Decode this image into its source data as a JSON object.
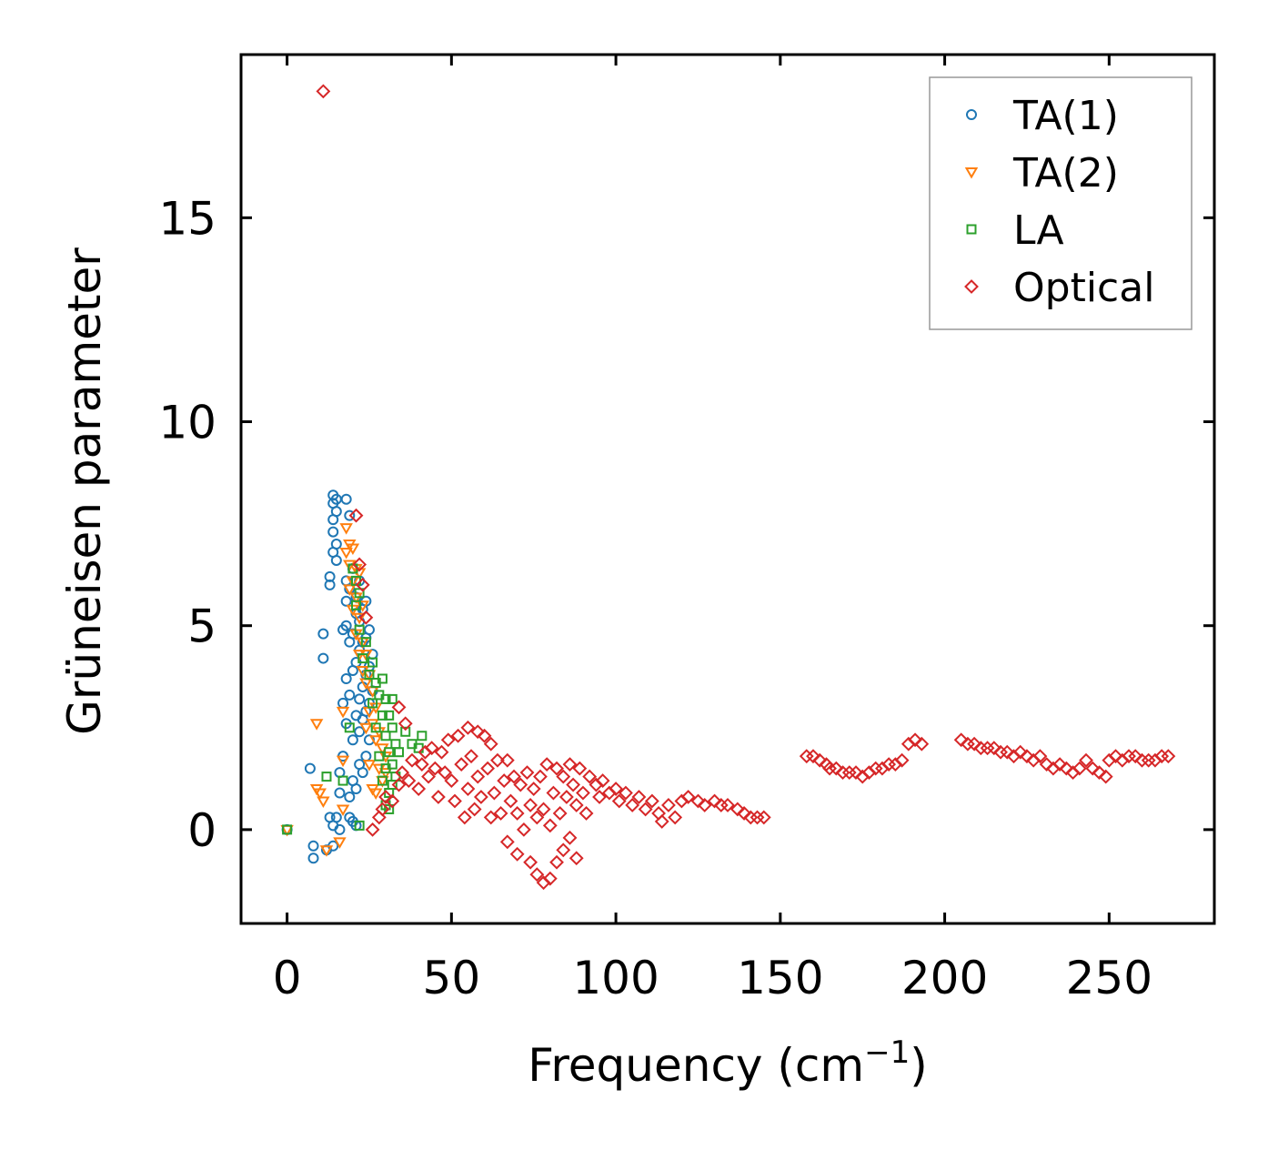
{
  "chart_data": {
    "type": "scatter",
    "title": "",
    "xlabel": "Frequency (cm",
    "xlabel_sup": "−1",
    "xlabel_close": ")",
    "ylabel": "Grüneisen parameter",
    "xlim": [
      -14,
      282
    ],
    "ylim": [
      -2.3,
      19.0
    ],
    "xticks": [
      0,
      50,
      100,
      150,
      200,
      250
    ],
    "xtick_labels": [
      "0",
      "50",
      "100",
      "150",
      "200",
      "250"
    ],
    "yticks": [
      0,
      5,
      10,
      15
    ],
    "ytick_labels": [
      "0",
      "5",
      "10",
      "15"
    ],
    "grid": false,
    "legend_position": "top-right",
    "series": [
      {
        "name": "TA(1)",
        "marker": "circle",
        "color": "#1f77b4",
        "points": [
          [
            0,
            0
          ],
          [
            7,
            1.5
          ],
          [
            8,
            -0.4
          ],
          [
            8,
            -0.7
          ],
          [
            11,
            4.2
          ],
          [
            11,
            4.8
          ],
          [
            12,
            -0.5
          ],
          [
            13,
            0.3
          ],
          [
            13,
            6.0
          ],
          [
            13,
            6.2
          ],
          [
            14,
            6.8
          ],
          [
            14,
            7.3
          ],
          [
            14,
            7.6
          ],
          [
            14,
            8.0
          ],
          [
            14,
            8.2
          ],
          [
            14,
            -0.4
          ],
          [
            14,
            0.1
          ],
          [
            15,
            6.6
          ],
          [
            15,
            7.0
          ],
          [
            15,
            7.8
          ],
          [
            15,
            8.1
          ],
          [
            15,
            0.3
          ],
          [
            16,
            0
          ],
          [
            16,
            0.9
          ],
          [
            16,
            1.4
          ],
          [
            17,
            1.8
          ],
          [
            17,
            3.1
          ],
          [
            17,
            4.9
          ],
          [
            18,
            2.6
          ],
          [
            18,
            3.7
          ],
          [
            18,
            5.0
          ],
          [
            18,
            5.6
          ],
          [
            18,
            6.1
          ],
          [
            18,
            8.1
          ],
          [
            19,
            0.3
          ],
          [
            19,
            0.8
          ],
          [
            19,
            3.3
          ],
          [
            19,
            4.6
          ],
          [
            19,
            5.9
          ],
          [
            19,
            7.7
          ],
          [
            20,
            0.2
          ],
          [
            20,
            1.2
          ],
          [
            20,
            2.2
          ],
          [
            20,
            3.9
          ],
          [
            20,
            4.8
          ],
          [
            20,
            6.4
          ],
          [
            21,
            0.1
          ],
          [
            21,
            1.0
          ],
          [
            21,
            2.8
          ],
          [
            21,
            4.1
          ],
          [
            21,
            5.3
          ],
          [
            21,
            5.7
          ],
          [
            22,
            1.6
          ],
          [
            22,
            2.4
          ],
          [
            22,
            3.2
          ],
          [
            22,
            4.4
          ],
          [
            22,
            5.1
          ],
          [
            22,
            6.1
          ],
          [
            23,
            1.4
          ],
          [
            23,
            2.7
          ],
          [
            23,
            3.5
          ],
          [
            23,
            4.6
          ],
          [
            23,
            5.4
          ],
          [
            24,
            1.8
          ],
          [
            24,
            2.9
          ],
          [
            24,
            3.8
          ],
          [
            24,
            4.7
          ],
          [
            24,
            5.6
          ],
          [
            25,
            2.2
          ],
          [
            25,
            3.1
          ],
          [
            25,
            4.0
          ],
          [
            25,
            4.9
          ],
          [
            26,
            3.4
          ],
          [
            26,
            4.3
          ]
        ]
      },
      {
        "name": "TA(2)",
        "marker": "triangle-down",
        "color": "#ff7f0e",
        "points": [
          [
            0,
            0
          ],
          [
            9,
            2.6
          ],
          [
            9,
            1.0
          ],
          [
            10,
            0.9
          ],
          [
            11,
            0.7
          ],
          [
            12,
            -0.5
          ],
          [
            16,
            -0.3
          ],
          [
            17,
            0.5
          ],
          [
            17,
            1.7
          ],
          [
            17,
            2.9
          ],
          [
            18,
            6.8
          ],
          [
            18,
            7.4
          ],
          [
            19,
            5.9
          ],
          [
            19,
            6.5
          ],
          [
            19,
            7.0
          ],
          [
            20,
            5.4
          ],
          [
            20,
            6.1
          ],
          [
            20,
            6.9
          ],
          [
            21,
            4.8
          ],
          [
            21,
            5.7
          ],
          [
            21,
            6.4
          ],
          [
            22,
            4.3
          ],
          [
            22,
            5.2
          ],
          [
            22,
            6.3
          ],
          [
            23,
            3.9
          ],
          [
            23,
            4.6
          ],
          [
            23,
            5.5
          ],
          [
            24,
            2.5
          ],
          [
            24,
            3.6
          ],
          [
            24,
            4.3
          ],
          [
            25,
            1.6
          ],
          [
            25,
            2.9
          ],
          [
            25,
            3.8
          ],
          [
            26,
            1.0
          ],
          [
            26,
            2.6
          ],
          [
            26,
            3.4
          ],
          [
            27,
            0.9
          ],
          [
            27,
            2.2
          ],
          [
            27,
            3.0
          ],
          [
            28,
            1.5
          ],
          [
            28,
            2.4
          ],
          [
            29,
            1.2
          ],
          [
            29,
            2.0
          ],
          [
            30,
            1.4
          ],
          [
            30,
            1.8
          ]
        ]
      },
      {
        "name": "LA",
        "marker": "square",
        "color": "#2ca02c",
        "points": [
          [
            0,
            0
          ],
          [
            12,
            1.3
          ],
          [
            17,
            1.2
          ],
          [
            19,
            2.5
          ],
          [
            20,
            6.4
          ],
          [
            21,
            6.1
          ],
          [
            21,
            5.5
          ],
          [
            22,
            5.8
          ],
          [
            22,
            4.9
          ],
          [
            23,
            4.2
          ],
          [
            24,
            4.6
          ],
          [
            25,
            3.8
          ],
          [
            26,
            3.1
          ],
          [
            26,
            4.1
          ],
          [
            27,
            2.5
          ],
          [
            27,
            3.6
          ],
          [
            28,
            1.8
          ],
          [
            28,
            3.3
          ],
          [
            29,
            1.2
          ],
          [
            29,
            2.8
          ],
          [
            29,
            3.7
          ],
          [
            30,
            0.6
          ],
          [
            30,
            1.5
          ],
          [
            30,
            2.3
          ],
          [
            30,
            3.2
          ],
          [
            31,
            0.5
          ],
          [
            31,
            0.9
          ],
          [
            31,
            1.9
          ],
          [
            31,
            2.8
          ],
          [
            32,
            1.1
          ],
          [
            32,
            1.6
          ],
          [
            32,
            2.5
          ],
          [
            32,
            3.2
          ],
          [
            33,
            1.3
          ],
          [
            33,
            2.1
          ],
          [
            34,
            1.9
          ],
          [
            36,
            2.4
          ],
          [
            38,
            2.1
          ],
          [
            40,
            2.0
          ],
          [
            41,
            2.3
          ],
          [
            22,
            0.1
          ]
        ]
      },
      {
        "name": "Optical",
        "marker": "diamond",
        "color": "#d62728",
        "points": [
          [
            11,
            18.1
          ],
          [
            21,
            7.7
          ],
          [
            22,
            6.5
          ],
          [
            23,
            6.0
          ],
          [
            24,
            5.2
          ],
          [
            34,
            3.0
          ],
          [
            36,
            2.6
          ],
          [
            26,
            0
          ],
          [
            28,
            0.3
          ],
          [
            29,
            0.5
          ],
          [
            30,
            0.8
          ],
          [
            32,
            0.7
          ],
          [
            34,
            1.1
          ],
          [
            35,
            1.4
          ],
          [
            37,
            1.2
          ],
          [
            38,
            1.7
          ],
          [
            40,
            1.0
          ],
          [
            41,
            1.6
          ],
          [
            42,
            1.9
          ],
          [
            43,
            1.3
          ],
          [
            44,
            2.0
          ],
          [
            45,
            1.5
          ],
          [
            46,
            0.8
          ],
          [
            47,
            1.9
          ],
          [
            48,
            1.4
          ],
          [
            49,
            2.2
          ],
          [
            50,
            1.2
          ],
          [
            51,
            0.7
          ],
          [
            52,
            2.3
          ],
          [
            53,
            1.6
          ],
          [
            54,
            0.3
          ],
          [
            55,
            2.5
          ],
          [
            55,
            1.0
          ],
          [
            56,
            1.8
          ],
          [
            57,
            0.5
          ],
          [
            58,
            2.4
          ],
          [
            58,
            1.3
          ],
          [
            59,
            0.8
          ],
          [
            60,
            2.3
          ],
          [
            61,
            1.5
          ],
          [
            62,
            0.3
          ],
          [
            62,
            2.1
          ],
          [
            63,
            0.9
          ],
          [
            64,
            1.7
          ],
          [
            65,
            0.4
          ],
          [
            66,
            1.2
          ],
          [
            67,
            1.7
          ],
          [
            67,
            -0.3
          ],
          [
            68,
            0.7
          ],
          [
            69,
            1.3
          ],
          [
            70,
            -0.6
          ],
          [
            70,
            0.4
          ],
          [
            71,
            1.1
          ],
          [
            72,
            0.0
          ],
          [
            73,
            1.4
          ],
          [
            74,
            -0.8
          ],
          [
            74,
            0.6
          ],
          [
            75,
            1.0
          ],
          [
            76,
            -1.1
          ],
          [
            76,
            0.3
          ],
          [
            77,
            1.3
          ],
          [
            78,
            -1.3
          ],
          [
            78,
            0.5
          ],
          [
            79,
            1.6
          ],
          [
            80,
            -1.2
          ],
          [
            80,
            0.1
          ],
          [
            81,
            0.9
          ],
          [
            82,
            1.5
          ],
          [
            82,
            -0.8
          ],
          [
            83,
            0.4
          ],
          [
            84,
            1.3
          ],
          [
            84,
            -0.5
          ],
          [
            85,
            0.8
          ],
          [
            86,
            1.6
          ],
          [
            86,
            -0.2
          ],
          [
            87,
            1.1
          ],
          [
            88,
            -0.7
          ],
          [
            88,
            0.6
          ],
          [
            89,
            1.5
          ],
          [
            90,
            0.9
          ],
          [
            91,
            0.4
          ],
          [
            92,
            1.3
          ],
          [
            94,
            1.1
          ],
          [
            95,
            0.8
          ],
          [
            96,
            1.2
          ],
          [
            98,
            0.9
          ],
          [
            100,
            1.0
          ],
          [
            101,
            0.7
          ],
          [
            103,
            0.9
          ],
          [
            105,
            0.6
          ],
          [
            107,
            0.8
          ],
          [
            109,
            0.5
          ],
          [
            111,
            0.7
          ],
          [
            113,
            0.4
          ],
          [
            114,
            0.2
          ],
          [
            116,
            0.6
          ],
          [
            118,
            0.3
          ],
          [
            120,
            0.7
          ],
          [
            122,
            0.8
          ],
          [
            125,
            0.7
          ],
          [
            127,
            0.6
          ],
          [
            130,
            0.7
          ],
          [
            132,
            0.6
          ],
          [
            134,
            0.6
          ],
          [
            137,
            0.5
          ],
          [
            139,
            0.4
          ],
          [
            141,
            0.3
          ],
          [
            143,
            0.3
          ],
          [
            145,
            0.3
          ],
          [
            158,
            1.8
          ],
          [
            160,
            1.8
          ],
          [
            162,
            1.7
          ],
          [
            164,
            1.6
          ],
          [
            165,
            1.5
          ],
          [
            167,
            1.5
          ],
          [
            169,
            1.4
          ],
          [
            171,
            1.4
          ],
          [
            173,
            1.4
          ],
          [
            175,
            1.3
          ],
          [
            177,
            1.4
          ],
          [
            179,
            1.5
          ],
          [
            181,
            1.5
          ],
          [
            183,
            1.6
          ],
          [
            185,
            1.6
          ],
          [
            187,
            1.7
          ],
          [
            189,
            2.1
          ],
          [
            191,
            2.2
          ],
          [
            193,
            2.1
          ],
          [
            205,
            2.2
          ],
          [
            207,
            2.1
          ],
          [
            209,
            2.1
          ],
          [
            211,
            2.0
          ],
          [
            213,
            2.0
          ],
          [
            215,
            2.0
          ],
          [
            217,
            1.9
          ],
          [
            219,
            1.9
          ],
          [
            221,
            1.8
          ],
          [
            223,
            1.9
          ],
          [
            225,
            1.8
          ],
          [
            227,
            1.7
          ],
          [
            229,
            1.8
          ],
          [
            231,
            1.6
          ],
          [
            233,
            1.5
          ],
          [
            235,
            1.6
          ],
          [
            237,
            1.5
          ],
          [
            239,
            1.4
          ],
          [
            241,
            1.5
          ],
          [
            243,
            1.7
          ],
          [
            245,
            1.5
          ],
          [
            247,
            1.4
          ],
          [
            249,
            1.3
          ],
          [
            250,
            1.7
          ],
          [
            252,
            1.8
          ],
          [
            254,
            1.7
          ],
          [
            256,
            1.8
          ],
          [
            258,
            1.8
          ],
          [
            260,
            1.7
          ],
          [
            262,
            1.7
          ],
          [
            264,
            1.7
          ],
          [
            266,
            1.8
          ],
          [
            268,
            1.8
          ]
        ]
      }
    ]
  }
}
